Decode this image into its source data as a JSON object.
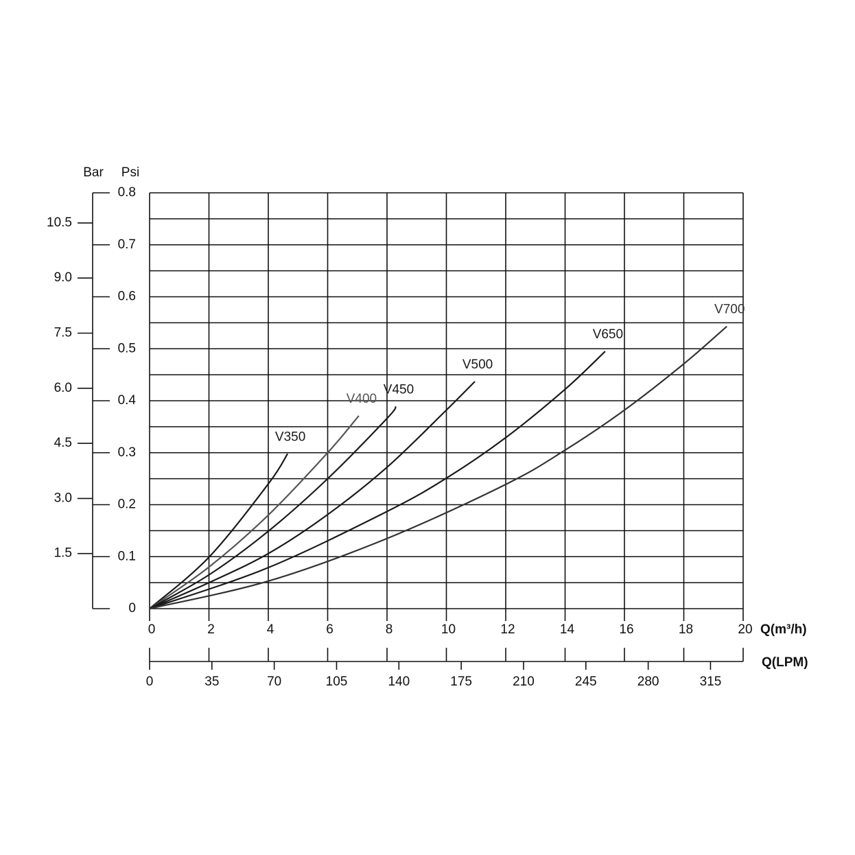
{
  "chart_data": {
    "type": "line",
    "x_label": "Q(m³/h)",
    "x2_label": "Q(LPM)",
    "y_label": "Psi",
    "y2_label": "Bar",
    "xlim": [
      0,
      20
    ],
    "xticks": [
      0,
      2,
      4,
      6,
      8,
      10,
      12,
      14,
      16,
      18,
      20
    ],
    "x2lim": [
      0,
      333.33
    ],
    "x2ticks": [
      0,
      35,
      70,
      105,
      140,
      175,
      210,
      245,
      280,
      315
    ],
    "ylim": [
      0,
      0.8
    ],
    "yticks": [
      0,
      0.1,
      0.2,
      0.3,
      0.4,
      0.5,
      0.6,
      0.7,
      0.8
    ],
    "ygrid": [
      0.05,
      0.15,
      0.25,
      0.35,
      0.45,
      0.55,
      0.65,
      0.75
    ],
    "y2lim": [
      0,
      11.32
    ],
    "y2ticks": [
      1.5,
      {
        "value": 3,
        "label": "3.0"
      },
      4.5,
      {
        "value": 6,
        "label": "6.0"
      },
      7.5,
      {
        "value": 9,
        "label": "9.0"
      },
      10.5
    ],
    "grid": true,
    "series": [
      {
        "name": "V350",
        "color": "#1a1a1a",
        "x": [
          0,
          2,
          4,
          4.65
        ],
        "values": [
          0,
          0.099,
          0.24,
          0.298
        ]
      },
      {
        "name": "V400",
        "color": "#555555",
        "x": [
          0,
          2,
          4,
          6,
          7.05
        ],
        "values": [
          0,
          0.08,
          0.18,
          0.3,
          0.371
        ]
      },
      {
        "name": "V450",
        "color": "#1a1a1a",
        "x": [
          0,
          2,
          4,
          6,
          8,
          8.3
        ],
        "values": [
          0,
          0.065,
          0.149,
          0.25,
          0.366,
          0.389
        ]
      },
      {
        "name": "V500",
        "color": "#1a1a1a",
        "x": [
          0,
          2,
          4,
          6,
          8,
          10,
          10.96
        ],
        "values": [
          0,
          0.05,
          0.106,
          0.181,
          0.272,
          0.382,
          0.437
        ]
      },
      {
        "name": "V650",
        "color": "#1a1a1a",
        "x": [
          0,
          4,
          8,
          10,
          12,
          14,
          15.35
        ],
        "values": [
          0,
          0.079,
          0.187,
          0.251,
          0.329,
          0.422,
          0.495
        ]
      },
      {
        "name": "V700",
        "color": "#333333",
        "x": [
          0,
          4,
          8,
          12,
          14,
          16,
          18,
          19.45
        ],
        "values": [
          0,
          0.053,
          0.135,
          0.239,
          0.305,
          0.382,
          0.471,
          0.543
        ]
      }
    ]
  }
}
